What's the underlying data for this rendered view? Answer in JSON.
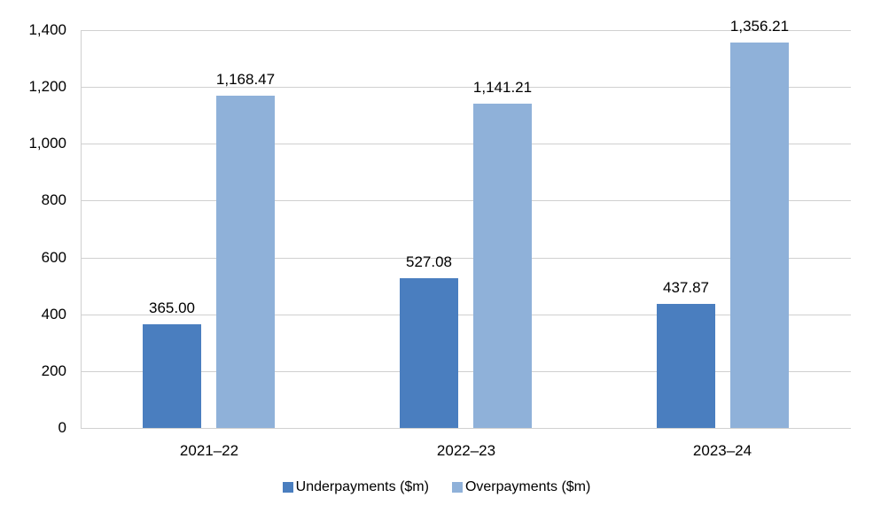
{
  "chart_data": {
    "type": "bar",
    "title": "",
    "xlabel": "",
    "ylabel": "",
    "categories": [
      "2021–22",
      "2022–23",
      "2023–24"
    ],
    "series": [
      {
        "name": "Underpayments ($m)",
        "color": "#4a7ebf",
        "values": [
          365.0,
          527.08,
          437.87
        ],
        "labels": [
          "365.00",
          "527.08",
          "437.87"
        ]
      },
      {
        "name": "Overpayments ($m)",
        "color": "#8fb1d9",
        "values": [
          1168.47,
          1141.21,
          1356.21
        ],
        "labels": [
          "1,168.47",
          "1,141.21",
          "1,356.21"
        ]
      }
    ],
    "ylim": [
      0,
      1400
    ],
    "yticks": [
      "0",
      "200",
      "400",
      "600",
      "800",
      "1,000",
      "1,200",
      "1,400"
    ],
    "grid": true,
    "legend_position": "bottom"
  }
}
